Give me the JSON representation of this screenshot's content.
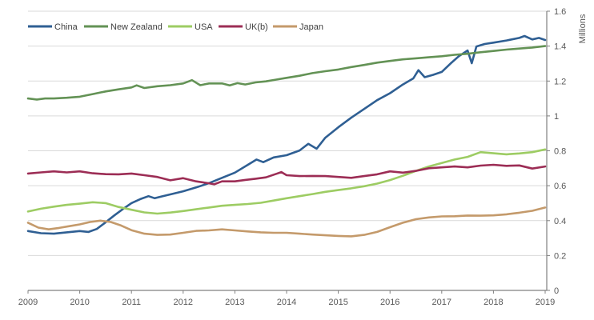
{
  "chart_data": {
    "type": "line",
    "title": "",
    "xlabel": "",
    "ylabel": "Millions",
    "grid": true,
    "legend_position": "top-left",
    "x_axis": {
      "min": 2009,
      "max": 2019,
      "tick_labels": [
        "2009",
        "2010",
        "2011",
        "2012",
        "2013",
        "2014",
        "2015",
        "2016",
        "2017",
        "2018",
        "2019"
      ],
      "tick_values": [
        2009,
        2010,
        2011,
        2012,
        2013,
        2014,
        2015,
        2016,
        2017,
        2018,
        2019
      ]
    },
    "y_axis": {
      "min": 0,
      "max": 1.6,
      "tick_labels": [
        "0",
        "0.2",
        "0.4",
        "0.6",
        "0.8",
        "1",
        "1.2",
        "1.4",
        "1.6"
      ],
      "tick_values": [
        0,
        0.2,
        0.4,
        0.6,
        0.8,
        1,
        1.2,
        1.4,
        1.6
      ]
    },
    "series": [
      {
        "name": "China",
        "color": "#2f5f93",
        "points": [
          [
            2009,
            0.34
          ],
          [
            2009.25,
            0.328
          ],
          [
            2009.5,
            0.325
          ],
          [
            2009.75,
            0.333
          ],
          [
            2010,
            0.34
          ],
          [
            2010.17,
            0.335
          ],
          [
            2010.33,
            0.352
          ],
          [
            2010.5,
            0.39
          ],
          [
            2010.67,
            0.43
          ],
          [
            2010.83,
            0.465
          ],
          [
            2011,
            0.5
          ],
          [
            2011.17,
            0.523
          ],
          [
            2011.33,
            0.54
          ],
          [
            2011.45,
            0.528
          ],
          [
            2011.58,
            0.538
          ],
          [
            2011.75,
            0.55
          ],
          [
            2012,
            0.568
          ],
          [
            2012.25,
            0.59
          ],
          [
            2012.5,
            0.615
          ],
          [
            2012.75,
            0.645
          ],
          [
            2013,
            0.675
          ],
          [
            2013.25,
            0.72
          ],
          [
            2013.42,
            0.75
          ],
          [
            2013.55,
            0.735
          ],
          [
            2013.75,
            0.762
          ],
          [
            2014,
            0.775
          ],
          [
            2014.25,
            0.802
          ],
          [
            2014.42,
            0.84
          ],
          [
            2014.58,
            0.812
          ],
          [
            2014.75,
            0.875
          ],
          [
            2015,
            0.935
          ],
          [
            2015.25,
            0.99
          ],
          [
            2015.5,
            1.04
          ],
          [
            2015.75,
            1.09
          ],
          [
            2016,
            1.13
          ],
          [
            2016.25,
            1.18
          ],
          [
            2016.45,
            1.215
          ],
          [
            2016.55,
            1.262
          ],
          [
            2016.67,
            1.222
          ],
          [
            2016.83,
            1.235
          ],
          [
            2017,
            1.252
          ],
          [
            2017.17,
            1.3
          ],
          [
            2017.33,
            1.342
          ],
          [
            2017.5,
            1.375
          ],
          [
            2017.58,
            1.302
          ],
          [
            2017.67,
            1.398
          ],
          [
            2017.83,
            1.412
          ],
          [
            2018,
            1.42
          ],
          [
            2018.25,
            1.432
          ],
          [
            2018.5,
            1.447
          ],
          [
            2018.6,
            1.458
          ],
          [
            2018.75,
            1.438
          ],
          [
            2018.88,
            1.447
          ],
          [
            2019,
            1.435
          ]
        ]
      },
      {
        "name": "New Zealand",
        "color": "#639255",
        "points": [
          [
            2009,
            1.1
          ],
          [
            2009.17,
            1.094
          ],
          [
            2009.33,
            1.1
          ],
          [
            2009.5,
            1.1
          ],
          [
            2009.75,
            1.104
          ],
          [
            2010,
            1.11
          ],
          [
            2010.25,
            1.125
          ],
          [
            2010.5,
            1.14
          ],
          [
            2010.75,
            1.152
          ],
          [
            2011,
            1.163
          ],
          [
            2011.1,
            1.175
          ],
          [
            2011.25,
            1.16
          ],
          [
            2011.5,
            1.17
          ],
          [
            2011.75,
            1.176
          ],
          [
            2012,
            1.186
          ],
          [
            2012.17,
            1.205
          ],
          [
            2012.33,
            1.176
          ],
          [
            2012.5,
            1.186
          ],
          [
            2012.75,
            1.186
          ],
          [
            2012.9,
            1.175
          ],
          [
            2013.05,
            1.188
          ],
          [
            2013.2,
            1.18
          ],
          [
            2013.4,
            1.192
          ],
          [
            2013.6,
            1.198
          ],
          [
            2013.8,
            1.208
          ],
          [
            2014,
            1.218
          ],
          [
            2014.25,
            1.23
          ],
          [
            2014.5,
            1.245
          ],
          [
            2014.75,
            1.256
          ],
          [
            2015,
            1.266
          ],
          [
            2015.25,
            1.28
          ],
          [
            2015.5,
            1.292
          ],
          [
            2015.75,
            1.305
          ],
          [
            2016,
            1.315
          ],
          [
            2016.25,
            1.324
          ],
          [
            2016.5,
            1.33
          ],
          [
            2016.75,
            1.336
          ],
          [
            2017,
            1.342
          ],
          [
            2017.25,
            1.35
          ],
          [
            2017.5,
            1.356
          ],
          [
            2017.75,
            1.365
          ],
          [
            2018,
            1.372
          ],
          [
            2018.25,
            1.38
          ],
          [
            2018.5,
            1.386
          ],
          [
            2018.75,
            1.392
          ],
          [
            2019,
            1.4
          ]
        ]
      },
      {
        "name": "USA",
        "color": "#9dcc63",
        "points": [
          [
            2009,
            0.452
          ],
          [
            2009.25,
            0.468
          ],
          [
            2009.5,
            0.48
          ],
          [
            2009.75,
            0.49
          ],
          [
            2010,
            0.497
          ],
          [
            2010.25,
            0.505
          ],
          [
            2010.5,
            0.5
          ],
          [
            2010.75,
            0.478
          ],
          [
            2011,
            0.462
          ],
          [
            2011.25,
            0.447
          ],
          [
            2011.5,
            0.44
          ],
          [
            2011.75,
            0.446
          ],
          [
            2012,
            0.455
          ],
          [
            2012.25,
            0.465
          ],
          [
            2012.5,
            0.475
          ],
          [
            2012.75,
            0.485
          ],
          [
            2013,
            0.49
          ],
          [
            2013.25,
            0.495
          ],
          [
            2013.5,
            0.502
          ],
          [
            2013.75,
            0.515
          ],
          [
            2014,
            0.528
          ],
          [
            2014.25,
            0.54
          ],
          [
            2014.5,
            0.552
          ],
          [
            2014.75,
            0.565
          ],
          [
            2015,
            0.575
          ],
          [
            2015.25,
            0.585
          ],
          [
            2015.5,
            0.597
          ],
          [
            2015.75,
            0.612
          ],
          [
            2016,
            0.632
          ],
          [
            2016.25,
            0.657
          ],
          [
            2016.5,
            0.685
          ],
          [
            2016.75,
            0.71
          ],
          [
            2017,
            0.73
          ],
          [
            2017.25,
            0.75
          ],
          [
            2017.5,
            0.765
          ],
          [
            2017.75,
            0.792
          ],
          [
            2018,
            0.786
          ],
          [
            2018.25,
            0.78
          ],
          [
            2018.5,
            0.785
          ],
          [
            2018.75,
            0.792
          ],
          [
            2019,
            0.808
          ]
        ]
      },
      {
        "name": "UK(b)",
        "color": "#9c2d55",
        "points": [
          [
            2009,
            0.67
          ],
          [
            2009.25,
            0.676
          ],
          [
            2009.5,
            0.682
          ],
          [
            2009.75,
            0.676
          ],
          [
            2010,
            0.682
          ],
          [
            2010.25,
            0.671
          ],
          [
            2010.5,
            0.666
          ],
          [
            2010.75,
            0.665
          ],
          [
            2011,
            0.67
          ],
          [
            2011.25,
            0.66
          ],
          [
            2011.5,
            0.65
          ],
          [
            2011.75,
            0.631
          ],
          [
            2012,
            0.643
          ],
          [
            2012.25,
            0.625
          ],
          [
            2012.5,
            0.614
          ],
          [
            2012.6,
            0.608
          ],
          [
            2012.75,
            0.625
          ],
          [
            2013,
            0.625
          ],
          [
            2013.2,
            0.633
          ],
          [
            2013.4,
            0.64
          ],
          [
            2013.6,
            0.648
          ],
          [
            2013.8,
            0.668
          ],
          [
            2013.9,
            0.678
          ],
          [
            2014,
            0.66
          ],
          [
            2014.25,
            0.655
          ],
          [
            2014.5,
            0.656
          ],
          [
            2014.75,
            0.655
          ],
          [
            2015,
            0.65
          ],
          [
            2015.25,
            0.645
          ],
          [
            2015.5,
            0.655
          ],
          [
            2015.75,
            0.665
          ],
          [
            2016,
            0.682
          ],
          [
            2016.25,
            0.675
          ],
          [
            2016.5,
            0.685
          ],
          [
            2016.75,
            0.7
          ],
          [
            2017,
            0.705
          ],
          [
            2017.25,
            0.71
          ],
          [
            2017.5,
            0.705
          ],
          [
            2017.75,
            0.715
          ],
          [
            2018,
            0.72
          ],
          [
            2018.25,
            0.714
          ],
          [
            2018.5,
            0.716
          ],
          [
            2018.75,
            0.698
          ],
          [
            2019,
            0.71
          ]
        ]
      },
      {
        "name": "Japan",
        "color": "#c49a6b",
        "points": [
          [
            2009,
            0.388
          ],
          [
            2009.2,
            0.36
          ],
          [
            2009.4,
            0.35
          ],
          [
            2009.6,
            0.358
          ],
          [
            2009.8,
            0.368
          ],
          [
            2010,
            0.378
          ],
          [
            2010.2,
            0.392
          ],
          [
            2010.4,
            0.4
          ],
          [
            2010.6,
            0.392
          ],
          [
            2010.8,
            0.372
          ],
          [
            2011,
            0.345
          ],
          [
            2011.25,
            0.325
          ],
          [
            2011.5,
            0.318
          ],
          [
            2011.75,
            0.32
          ],
          [
            2012,
            0.33
          ],
          [
            2012.25,
            0.341
          ],
          [
            2012.5,
            0.344
          ],
          [
            2012.75,
            0.35
          ],
          [
            2013,
            0.344
          ],
          [
            2013.25,
            0.338
          ],
          [
            2013.5,
            0.333
          ],
          [
            2013.75,
            0.33
          ],
          [
            2014,
            0.33
          ],
          [
            2014.25,
            0.325
          ],
          [
            2014.5,
            0.32
          ],
          [
            2014.75,
            0.316
          ],
          [
            2015,
            0.312
          ],
          [
            2015.25,
            0.31
          ],
          [
            2015.5,
            0.318
          ],
          [
            2015.75,
            0.335
          ],
          [
            2016,
            0.362
          ],
          [
            2016.25,
            0.388
          ],
          [
            2016.5,
            0.408
          ],
          [
            2016.75,
            0.418
          ],
          [
            2017,
            0.424
          ],
          [
            2017.25,
            0.425
          ],
          [
            2017.5,
            0.429
          ],
          [
            2017.75,
            0.428
          ],
          [
            2018,
            0.43
          ],
          [
            2018.25,
            0.436
          ],
          [
            2018.5,
            0.445
          ],
          [
            2018.75,
            0.456
          ],
          [
            2019,
            0.475
          ]
        ]
      }
    ],
    "legend": [
      "China",
      "New Zealand",
      "USA",
      "UK(b)",
      "Japan"
    ]
  },
  "colors": {
    "gridline": "#d9d9d9",
    "axis_line": "#808080",
    "tick_text": "#595959",
    "legend_text": "#404040",
    "background": "#ffffff"
  }
}
